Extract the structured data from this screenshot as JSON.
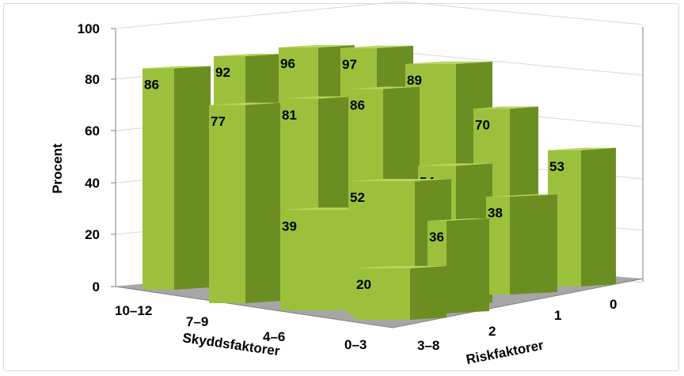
{
  "chart_data": {
    "type": "bar3d",
    "ylabel": "Procent",
    "ylim": [
      0,
      100
    ],
    "yticks": [
      0,
      20,
      40,
      60,
      80,
      100
    ],
    "x_axis": {
      "label": "Skyddsfaktorer",
      "categories": [
        "10–12",
        "7–9",
        "4–6",
        "0–3"
      ]
    },
    "depth_axis": {
      "label": "Riskfaktorer",
      "categories": [
        "3–8",
        "2",
        "1",
        "0"
      ]
    },
    "grid": true,
    "values": [
      {
        "skydd": "10–12",
        "risk": "0",
        "value": 86
      },
      {
        "skydd": "7–9",
        "risk": "0",
        "value": 92
      },
      {
        "skydd": "4–6",
        "risk": "0",
        "value": 96
      },
      {
        "skydd": "0–3",
        "risk": "0",
        "value": 97
      },
      {
        "skydd": "7–9",
        "risk": "1",
        "value": 77
      },
      {
        "skydd": "4–6",
        "risk": "1",
        "value": 81
      },
      {
        "skydd": "0–3",
        "risk": "1",
        "value": 86
      },
      {
        "skydd": "4–6",
        "risk": "2",
        "value": 39
      },
      {
        "skydd": "0–3",
        "risk": "2",
        "value": 52
      },
      {
        "skydd": "0–3",
        "risk": "3–8",
        "value": 20
      },
      {
        "skydd": "10–12",
        "risk": "3–8",
        "value": 89
      },
      {
        "skydd": "7–9",
        "risk": "3–8",
        "value": 70
      },
      {
        "skydd": "4–6",
        "risk": "3–8",
        "value": 53
      },
      {
        "skydd": "10–12",
        "risk": "2",
        "value": 54
      },
      {
        "skydd": "7–9",
        "risk": "2",
        "value": 38
      },
      {
        "skydd": "10–12",
        "risk": "1",
        "value": 36
      }
    ],
    "colors": {
      "front": "#9bc13c",
      "side": "#6b8e23",
      "top": "#b5d65a",
      "floor": "#a6a6a6",
      "grid": "#d9d9d9"
    }
  }
}
